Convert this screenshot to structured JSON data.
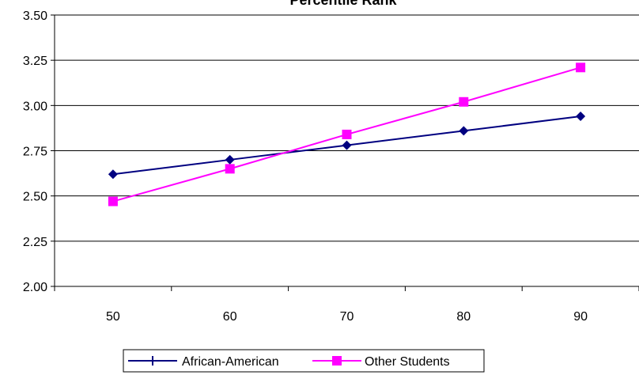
{
  "chart_data": {
    "type": "line",
    "title": "Percentile Rank",
    "xlabel": "",
    "ylabel": "",
    "categories": [
      "50",
      "60",
      "70",
      "80",
      "90"
    ],
    "x": [
      50,
      60,
      70,
      80,
      90
    ],
    "ylim": [
      2.0,
      3.5
    ],
    "yticks": [
      "2.00",
      "2.25",
      "2.50",
      "2.75",
      "3.00",
      "3.25",
      "3.50"
    ],
    "grid": true,
    "legend_position": "bottom",
    "series": [
      {
        "name": "African-American",
        "color": "#000080",
        "marker": "diamond",
        "values": [
          2.62,
          2.7,
          2.78,
          2.86,
          2.94
        ]
      },
      {
        "name": "Other Students",
        "color": "#FF00FF",
        "marker": "square",
        "values": [
          2.47,
          2.65,
          2.84,
          3.02,
          3.21
        ]
      }
    ]
  }
}
